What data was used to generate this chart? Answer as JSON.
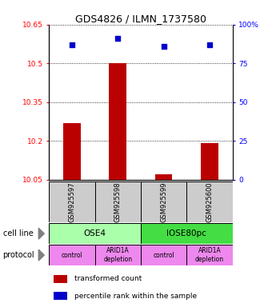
{
  "title": "GDS4826 / ILMN_1737580",
  "samples": [
    "GSM925597",
    "GSM925598",
    "GSM925599",
    "GSM925600"
  ],
  "bar_values": [
    10.27,
    10.5,
    10.07,
    10.19
  ],
  "bar_base": 10.05,
  "percentile_values": [
    87,
    91,
    86,
    87
  ],
  "ylim_left": [
    10.05,
    10.65
  ],
  "ylim_right": [
    0,
    100
  ],
  "yticks_left": [
    10.05,
    10.2,
    10.35,
    10.5,
    10.65
  ],
  "yticks_right": [
    0,
    25,
    50,
    75,
    100
  ],
  "ytick_labels_left": [
    "10.05",
    "10.2",
    "10.35",
    "10.5",
    "10.65"
  ],
  "ytick_labels_right": [
    "0",
    "25",
    "50",
    "75",
    "100%"
  ],
  "bar_color": "#bb0000",
  "dot_color": "#0000cc",
  "cell_line_labels": [
    "OSE4",
    "IOSE80pc"
  ],
  "cell_line_colors": [
    "#aaffaa",
    "#44dd44"
  ],
  "cell_line_spans": [
    [
      0,
      2
    ],
    [
      2,
      4
    ]
  ],
  "protocol_labels": [
    "control",
    "ARID1A\ndepletion",
    "control",
    "ARID1A\ndepletion"
  ],
  "protocol_color": "#ee88ee",
  "sample_box_color": "#cccccc",
  "legend_red_label": "transformed count",
  "legend_blue_label": "percentile rank within the sample",
  "cell_line_row_label": "cell line",
  "protocol_row_label": "protocol"
}
